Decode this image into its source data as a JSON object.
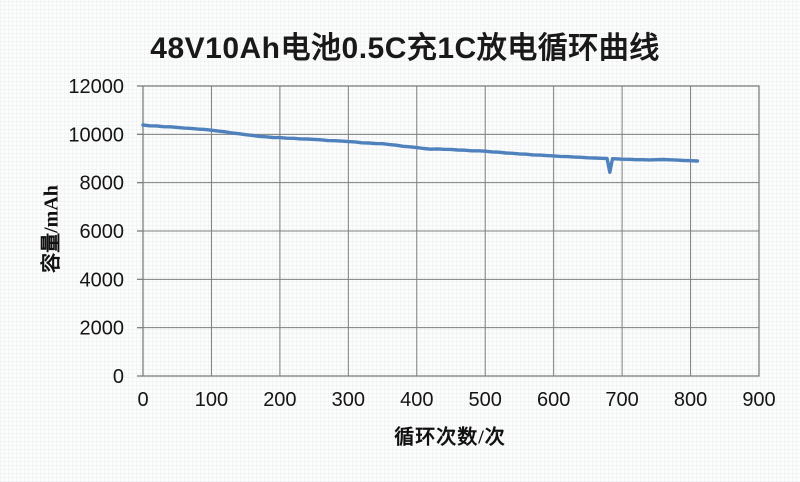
{
  "chart_data": {
    "type": "line",
    "title": "48V10Ah电池0.5C充1C放电循环曲线",
    "xlabel": "循环次数/次",
    "ylabel": "容量/mAh",
    "xlim": [
      0,
      900
    ],
    "ylim": [
      0,
      12000
    ],
    "x_ticks": [
      0,
      100,
      200,
      300,
      400,
      500,
      600,
      700,
      800,
      900
    ],
    "y_ticks": [
      0,
      2000,
      4000,
      6000,
      8000,
      10000,
      12000
    ],
    "grid": true,
    "legend_position": "none",
    "line_color": "#4f81bd",
    "grid_color": "#7e7e7e",
    "series": [
      {
        "name": "容量",
        "points": [
          [
            0,
            10385
          ],
          [
            10,
            10355
          ],
          [
            20,
            10350
          ],
          [
            30,
            10315
          ],
          [
            40,
            10310
          ],
          [
            50,
            10285
          ],
          [
            60,
            10260
          ],
          [
            70,
            10245
          ],
          [
            80,
            10215
          ],
          [
            90,
            10205
          ],
          [
            100,
            10170
          ],
          [
            110,
            10135
          ],
          [
            120,
            10105
          ],
          [
            130,
            10055
          ],
          [
            140,
            10025
          ],
          [
            150,
            9985
          ],
          [
            160,
            9955
          ],
          [
            170,
            9915
          ],
          [
            180,
            9900
          ],
          [
            190,
            9870
          ],
          [
            200,
            9865
          ],
          [
            210,
            9840
          ],
          [
            220,
            9835
          ],
          [
            230,
            9810
          ],
          [
            240,
            9808
          ],
          [
            250,
            9790
          ],
          [
            260,
            9775
          ],
          [
            270,
            9740
          ],
          [
            280,
            9735
          ],
          [
            290,
            9722
          ],
          [
            300,
            9700
          ],
          [
            310,
            9685
          ],
          [
            320,
            9650
          ],
          [
            330,
            9640
          ],
          [
            340,
            9618
          ],
          [
            350,
            9612
          ],
          [
            360,
            9575
          ],
          [
            370,
            9550
          ],
          [
            380,
            9505
          ],
          [
            390,
            9485
          ],
          [
            400,
            9450
          ],
          [
            410,
            9415
          ],
          [
            420,
            9385
          ],
          [
            430,
            9398
          ],
          [
            440,
            9382
          ],
          [
            450,
            9378
          ],
          [
            460,
            9350
          ],
          [
            470,
            9345
          ],
          [
            480,
            9320
          ],
          [
            490,
            9318
          ],
          [
            500,
            9302
          ],
          [
            510,
            9275
          ],
          [
            520,
            9260
          ],
          [
            530,
            9228
          ],
          [
            540,
            9215
          ],
          [
            550,
            9192
          ],
          [
            560,
            9178
          ],
          [
            570,
            9150
          ],
          [
            580,
            9142
          ],
          [
            590,
            9118
          ],
          [
            600,
            9108
          ],
          [
            610,
            9086
          ],
          [
            620,
            9078
          ],
          [
            630,
            9058
          ],
          [
            640,
            9048
          ],
          [
            650,
            9028
          ],
          [
            660,
            9022
          ],
          [
            670,
            9008
          ],
          [
            678,
            9002
          ],
          [
            682,
            8430
          ],
          [
            686,
            8992
          ],
          [
            690,
            8988
          ],
          [
            700,
            8972
          ],
          [
            710,
            8968
          ],
          [
            720,
            8952
          ],
          [
            730,
            8950
          ],
          [
            740,
            8942
          ],
          [
            750,
            8952
          ],
          [
            760,
            8958
          ],
          [
            770,
            8948
          ],
          [
            780,
            8932
          ],
          [
            790,
            8918
          ],
          [
            800,
            8908
          ],
          [
            810,
            8898
          ]
        ]
      }
    ]
  }
}
